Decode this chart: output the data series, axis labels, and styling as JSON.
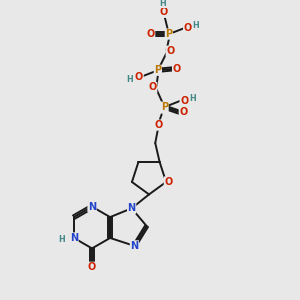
{
  "background_color": "#e8e8e8",
  "bond_color": "#1a1a1a",
  "oxygen_color": "#cc2200",
  "phosphorus_color": "#bb7700",
  "nitrogen_color": "#2244cc",
  "hydrogen_color": "#448888",
  "figsize": [
    3.0,
    3.0
  ],
  "dpi": 100,
  "xlim": [
    0,
    10
  ],
  "ylim": [
    0,
    10
  ]
}
